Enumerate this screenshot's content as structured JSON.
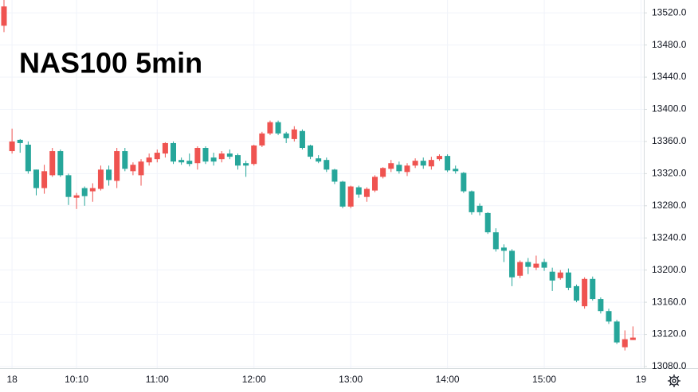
{
  "chart_data": {
    "type": "candlestick",
    "title": "NAS100 5min",
    "categories": [
      null,
      "18",
      null,
      null,
      null,
      null,
      null,
      null,
      null,
      "10:10",
      null,
      null,
      null,
      null,
      null,
      null,
      null,
      null,
      null,
      "11:00",
      null,
      null,
      null,
      null,
      null,
      null,
      null,
      null,
      null,
      null,
      null,
      "12:00",
      null,
      null,
      null,
      null,
      null,
      null,
      null,
      null,
      null,
      null,
      null,
      "13:00",
      null,
      null,
      null,
      null,
      null,
      null,
      null,
      null,
      null,
      null,
      null,
      "14:00",
      null,
      null,
      null,
      null,
      null,
      null,
      null,
      null,
      null,
      null,
      null,
      "15:00",
      null,
      null,
      null,
      null,
      null,
      null,
      null,
      null,
      null,
      null,
      null,
      "19"
    ],
    "open": [
      13504,
      13348,
      13362,
      13356,
      13325,
      13302,
      13318,
      13348,
      13318,
      13290,
      13302,
      13298,
      13301,
      13325,
      13311,
      13348,
      13323,
      13318,
      13334,
      13338,
      13345,
      13358,
      13337,
      13336,
      13333,
      13352,
      13340,
      13338,
      13345,
      13343,
      13333,
      13332,
      13355,
      13370,
      13384,
      13370,
      13363,
      13373,
      13355,
      13339,
      13337,
      13325,
      13310,
      13279,
      13303,
      13291,
      13299,
      13316,
      13326,
      13331,
      13322,
      13330,
      13336,
      13329,
      13338,
      13342,
      13326,
      13321,
      13298,
      13280,
      13271,
      13247,
      13228,
      13224,
      13193,
      13210,
      13203,
      13210,
      13198,
      13190,
      13197,
      13180,
      13155,
      13189,
      13164,
      13149,
      13136,
      13104,
      13113,
      null
    ],
    "high": [
      13536,
      13376,
      13363,
      13360,
      13325,
      13331,
      13352,
      13350,
      13320,
      13296,
      13304,
      13308,
      13330,
      13330,
      13352,
      13352,
      13334,
      13338,
      13345,
      13350,
      13359,
      13360,
      13340,
      13345,
      13354,
      13354,
      13346,
      13348,
      13350,
      13345,
      13336,
      13356,
      13372,
      13386,
      13386,
      13372,
      13379,
      13375,
      13356,
      13343,
      13340,
      13326,
      13311,
      13305,
      13305,
      13303,
      13318,
      13328,
      13337,
      13335,
      13333,
      13339,
      13340,
      13341,
      13344,
      13344,
      13330,
      13322,
      13299,
      13283,
      13272,
      13252,
      13232,
      13226,
      13212,
      13215,
      13218,
      13214,
      13203,
      13200,
      13202,
      13182,
      13191,
      13192,
      13166,
      13152,
      13138,
      13125,
      13130,
      null
    ],
    "low": [
      13496,
      13345,
      13346,
      13320,
      13293,
      13295,
      13316,
      13316,
      13281,
      13276,
      13280,
      13285,
      13299,
      13305,
      13302,
      13323,
      13318,
      13305,
      13330,
      13334,
      13340,
      13332,
      13331,
      13329,
      13325,
      13332,
      13330,
      13334,
      13338,
      13325,
      13316,
      13330,
      13353,
      13368,
      13368,
      13358,
      13360,
      13350,
      13338,
      13333,
      13322,
      13307,
      13277,
      13277,
      13290,
      13285,
      13297,
      13314,
      13322,
      13320,
      13317,
      13327,
      13326,
      13325,
      13336,
      13322,
      13320,
      13296,
      13269,
      13268,
      13245,
      13223,
      13210,
      13180,
      13190,
      13195,
      13200,
      13199,
      13174,
      13188,
      13175,
      13160,
      13152,
      13162,
      13146,
      13133,
      13108,
      13100,
      13113,
      null
    ],
    "close": [
      13528,
      13360,
      13358,
      13323,
      13302,
      13323,
      13348,
      13318,
      13291,
      13293,
      13292,
      13302,
      13325,
      13312,
      13348,
      13326,
      13331,
      13335,
      13340,
      13346,
      13358,
      13335,
      13334,
      13332,
      13352,
      13335,
      13335,
      13345,
      13341,
      13330,
      13330,
      13355,
      13370,
      13384,
      13370,
      13364,
      13375,
      13352,
      13341,
      13335,
      13325,
      13310,
      13279,
      13304,
      13294,
      13301,
      13316,
      13327,
      13333,
      13323,
      13330,
      13336,
      13330,
      13337,
      13342,
      13324,
      13323,
      13298,
      13272,
      13272,
      13247,
      13226,
      13224,
      13191,
      13210,
      13204,
      13208,
      13203,
      13187,
      13197,
      13178,
      13162,
      13189,
      13164,
      13149,
      13136,
      13110,
      13114,
      13116,
      null
    ],
    "up_color": "#ef5350",
    "down_color": "#26a69a",
    "ylim": [
      13078,
      13536
    ],
    "yticks": [
      {
        "value": 13080,
        "label": "13080.0"
      },
      {
        "value": 13120,
        "label": "13120.0"
      },
      {
        "value": 13160,
        "label": "13160.0"
      },
      {
        "value": 13200,
        "label": "13200.0"
      },
      {
        "value": 13240,
        "label": "13240.0"
      },
      {
        "value": 13280,
        "label": "13280.0"
      },
      {
        "value": 13320,
        "label": "13320.0"
      },
      {
        "value": 13360,
        "label": "13360.0"
      },
      {
        "value": 13400,
        "label": "13400.0"
      },
      {
        "value": 13440,
        "label": "13440.0"
      },
      {
        "value": 13480,
        "label": "13480.0"
      },
      {
        "value": 13520,
        "label": "13520.0"
      }
    ],
    "grid": true
  }
}
